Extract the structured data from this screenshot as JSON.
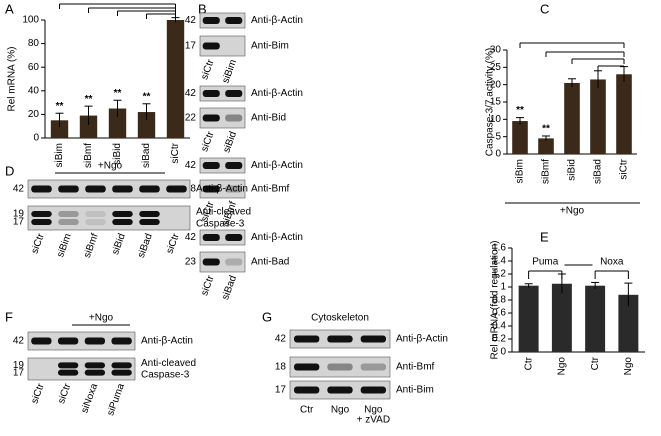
{
  "panels": [
    "A",
    "B",
    "C",
    "D",
    "E",
    "F",
    "G"
  ],
  "chart_data": [
    {
      "type": "bar",
      "y_label": "Rel mRNA (%)",
      "categories": [
        "siBim",
        "siBmf",
        "siBid",
        "siBad",
        "siCtr"
      ],
      "values": [
        15,
        19,
        25,
        22,
        100
      ],
      "errors": [
        6,
        8,
        7,
        7,
        2
      ],
      "significance": [
        "**",
        "**",
        "**",
        "**"
      ],
      "color": "#3b2a1a",
      "ylim": [
        0,
        100
      ],
      "yticks": [
        0,
        20,
        40,
        60,
        80,
        100
      ]
    },
    {
      "type": "bar",
      "y_label": "Caspase-3/7 activity (%)",
      "categories": [
        "siBim",
        "siBmf",
        "siBid",
        "siBad",
        "siCtr"
      ],
      "values": [
        9.5,
        4.5,
        20.5,
        21.5,
        23
      ],
      "errors": [
        1,
        0.7,
        1.2,
        2.5,
        2.2
      ],
      "significance": [
        "**",
        "**"
      ],
      "group_label": "+Ngo",
      "color": "#3b2a1a",
      "ylim": [
        0,
        30
      ],
      "yticks": [
        0,
        5,
        10,
        15,
        20,
        25,
        30
      ]
    },
    {
      "type": "bar",
      "y_label": "Rel mRNA (fold regulation)",
      "categories": [
        "Ctr",
        "Ngo",
        "Ctr",
        "Ngo"
      ],
      "values": [
        1.02,
        1.05,
        1.02,
        0.88
      ],
      "errors": [
        0.03,
        0.15,
        0.05,
        0.18
      ],
      "groups": [
        "Puma",
        "Noxa"
      ],
      "color": "#2a2a2a",
      "ylim": [
        0,
        1.6
      ],
      "yticks": [
        0,
        0.2,
        0.4,
        0.6,
        0.8,
        1,
        1.2,
        1.4,
        1.6
      ]
    }
  ],
  "blots": [
    {
      "rows": [
        {
          "mw": [
            "42"
          ],
          "label": [
            "Anti-β-Actin"
          ]
        },
        {
          "mw": [
            "17"
          ],
          "label": [
            "Anti-Bim"
          ]
        }
      ],
      "lanes": [
        [
          "siCtr"
        ],
        [
          "siBim"
        ]
      ]
    },
    {
      "rows": [
        {
          "mw": [
            "42"
          ],
          "label": [
            "Anti-β-Actin"
          ]
        },
        {
          "mw": [
            "22"
          ],
          "label": [
            "Anti-Bid"
          ]
        }
      ],
      "lanes": [
        [
          "siCtr"
        ],
        [
          "siBid"
        ]
      ]
    },
    {
      "rows": [
        {
          "mw": [
            "42"
          ],
          "label": [
            "Anti-β-Actin"
          ]
        },
        {
          "mw": [
            "18"
          ],
          "label": [
            "Anti-Bmf"
          ]
        }
      ],
      "lanes": [
        [
          "siCtr"
        ],
        [
          "siBmf"
        ]
      ]
    },
    {
      "rows": [
        {
          "mw": [
            "42"
          ],
          "label": [
            "Anti-β-Actin"
          ]
        },
        {
          "mw": [
            "23"
          ],
          "label": [
            "Anti-Bad"
          ]
        }
      ],
      "lanes": [
        [
          "siCtr"
        ],
        [
          "siBad"
        ]
      ]
    },
    {
      "title": "+Ngo",
      "rows": [
        {
          "mw": [
            "42"
          ],
          "label": [
            "Anti-β-Actin"
          ]
        },
        {
          "mw": [
            "19",
            "17"
          ],
          "label": [
            "Anti-cleaved",
            "Caspase-3"
          ]
        }
      ],
      "lanes": [
        [
          "siCtr"
        ],
        [
          "siBim"
        ],
        [
          "siBmf"
        ],
        [
          "siBid"
        ],
        [
          "siBad"
        ],
        [
          "siCtr"
        ]
      ]
    },
    {
      "title": "+Ngo",
      "rows": [
        {
          "mw": [
            "42"
          ],
          "label": [
            "Anti-β-Actin"
          ]
        },
        {
          "mw": [
            "19",
            "17"
          ],
          "label": [
            "Anti-cleaved",
            "Caspase-3"
          ]
        }
      ],
      "lanes": [
        [
          "siCtr"
        ],
        [
          "siCtr"
        ],
        [
          "siNoxa"
        ],
        [
          "siPuma"
        ]
      ]
    },
    {
      "title": "Cytoskeleton",
      "rows": [
        {
          "mw": [
            "42"
          ],
          "label": [
            "Anti-β-Actin"
          ]
        },
        {
          "mw": [
            "18"
          ],
          "label": [
            "Anti-Bmf"
          ]
        },
        {
          "mw": [
            "17"
          ],
          "label": [
            "Anti-Bim"
          ]
        }
      ],
      "lanes": [
        [
          "Ctr"
        ],
        [
          "Ngo"
        ],
        [
          "Ngo",
          "+ zVAD"
        ]
      ]
    }
  ]
}
